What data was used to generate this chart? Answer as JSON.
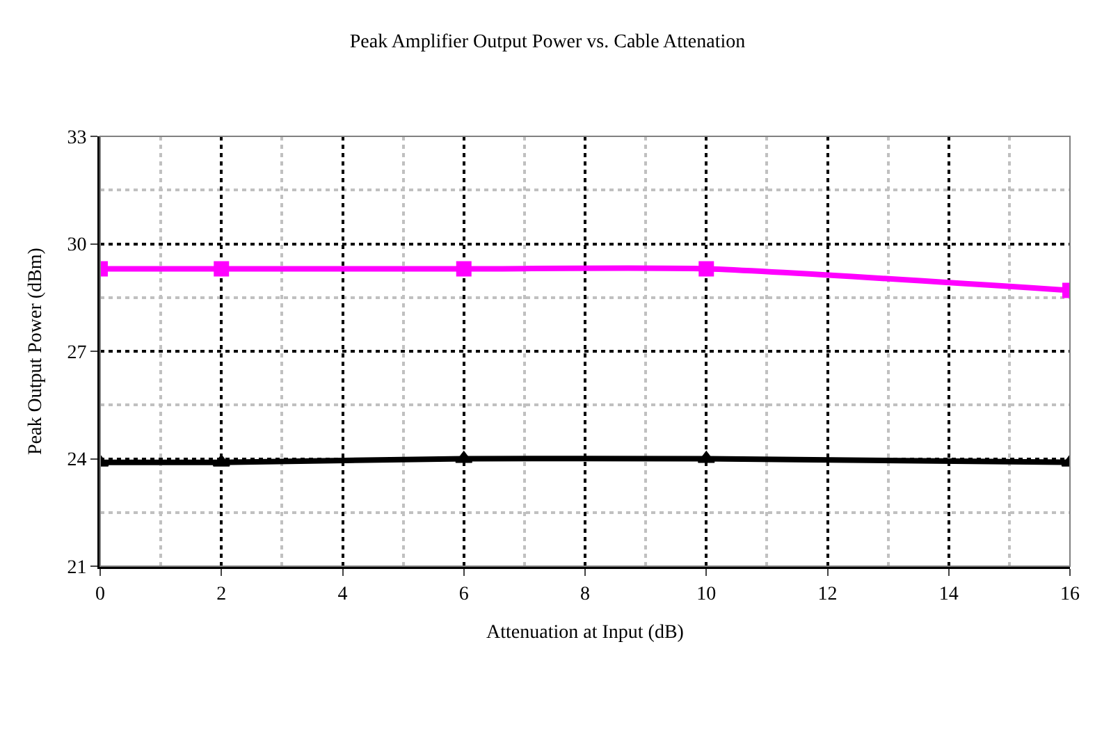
{
  "chart_data": {
    "type": "line",
    "title": "Peak Amplifier Output Power vs. Cable Attenation",
    "xlabel": "Attenuation at Input (dB)",
    "ylabel": "Peak Output Power (dBm)",
    "x": [
      0,
      2,
      6,
      10,
      16
    ],
    "series": [
      {
        "color": "#000000",
        "marker": "triangle",
        "values": [
          23.9,
          23.9,
          24.0,
          24.0,
          23.9
        ]
      },
      {
        "color": "#ff00ff",
        "marker": "square",
        "values": [
          29.3,
          29.3,
          29.3,
          29.3,
          28.7
        ]
      }
    ],
    "xlim": [
      0,
      16
    ],
    "xticks": [
      0,
      2,
      4,
      6,
      8,
      10,
      12,
      14,
      16
    ],
    "ylim": [
      21,
      33
    ],
    "yticks": [
      21,
      24,
      27,
      30,
      33
    ],
    "grid": true,
    "line_style": "solid"
  }
}
